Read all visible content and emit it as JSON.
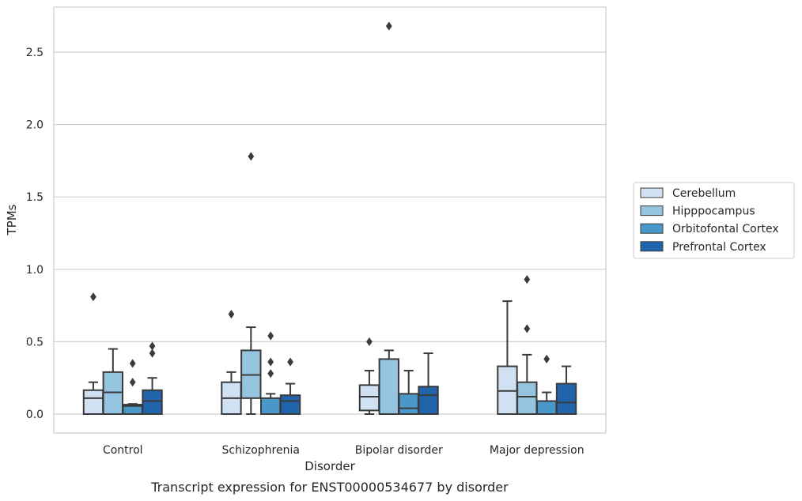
{
  "chart_data": {
    "type": "box",
    "caption": "Transcript expression for ENST00000534677 by disorder",
    "xlabel": "Disorder",
    "ylabel": "TPMs",
    "ylim": [
      -0.13,
      2.82
    ],
    "yticks": [
      "0.0",
      "0.5",
      "1.0",
      "1.5",
      "2.0",
      "2.5"
    ],
    "grid": true,
    "legend_position": "right",
    "categories": [
      "Control",
      "Schizophrenia",
      "Bipolar disorder",
      "Major depression"
    ],
    "series": [
      {
        "name": "Cerebellum",
        "color": "#d0e1f2",
        "boxes": [
          {
            "min": 0.0,
            "q1": 0.0,
            "median": 0.11,
            "q3": 0.165,
            "max": 0.22,
            "outliers": [
              0.81
            ]
          },
          {
            "min": 0.0,
            "q1": 0.0,
            "median": 0.11,
            "q3": 0.22,
            "max": 0.29,
            "outliers": [
              0.69
            ]
          },
          {
            "min": 0.0,
            "q1": 0.025,
            "median": 0.12,
            "q3": 0.2,
            "max": 0.3,
            "outliers": [
              0.5
            ]
          },
          {
            "min": 0.0,
            "q1": 0.0,
            "median": 0.16,
            "q3": 0.33,
            "max": 0.78,
            "outliers": []
          }
        ]
      },
      {
        "name": "Hipppocampus",
        "color": "#94c4df",
        "boxes": [
          {
            "min": 0.0,
            "q1": 0.0,
            "median": 0.15,
            "q3": 0.29,
            "max": 0.45,
            "outliers": []
          },
          {
            "min": 0.0,
            "q1": 0.11,
            "median": 0.27,
            "q3": 0.44,
            "max": 0.6,
            "outliers": [
              1.78
            ]
          },
          {
            "min": 0.0,
            "q1": 0.0,
            "median": 0.0,
            "q3": 0.38,
            "max": 0.44,
            "outliers": [
              2.68
            ]
          },
          {
            "min": 0.0,
            "q1": 0.0,
            "median": 0.12,
            "q3": 0.22,
            "max": 0.41,
            "outliers": [
              0.59,
              0.93
            ]
          }
        ]
      },
      {
        "name": "Orbitofontal Cortex",
        "color": "#4a98c9",
        "boxes": [
          {
            "min": 0.0,
            "q1": 0.0,
            "median": 0.055,
            "q3": 0.065,
            "max": 0.07,
            "outliers": [
              0.22,
              0.35
            ]
          },
          {
            "min": 0.0,
            "q1": 0.0,
            "median": 0.0,
            "q3": 0.11,
            "max": 0.14,
            "outliers": [
              0.28,
              0.36,
              0.54
            ]
          },
          {
            "min": 0.0,
            "q1": 0.0,
            "median": 0.04,
            "q3": 0.14,
            "max": 0.3,
            "outliers": []
          },
          {
            "min": 0.0,
            "q1": 0.0,
            "median": 0.0,
            "q3": 0.09,
            "max": 0.15,
            "outliers": [
              0.38
            ]
          }
        ]
      },
      {
        "name": "Prefrontal Cortex",
        "color": "#2164ab",
        "boxes": [
          {
            "min": 0.0,
            "q1": 0.0,
            "median": 0.09,
            "q3": 0.165,
            "max": 0.25,
            "outliers": [
              0.42,
              0.47
            ]
          },
          {
            "min": 0.0,
            "q1": 0.0,
            "median": 0.09,
            "q3": 0.13,
            "max": 0.21,
            "outliers": [
              0.36
            ]
          },
          {
            "min": 0.0,
            "q1": 0.0,
            "median": 0.13,
            "q3": 0.19,
            "max": 0.42,
            "outliers": []
          },
          {
            "min": 0.0,
            "q1": 0.0,
            "median": 0.08,
            "q3": 0.21,
            "max": 0.33,
            "outliers": []
          }
        ]
      }
    ]
  }
}
